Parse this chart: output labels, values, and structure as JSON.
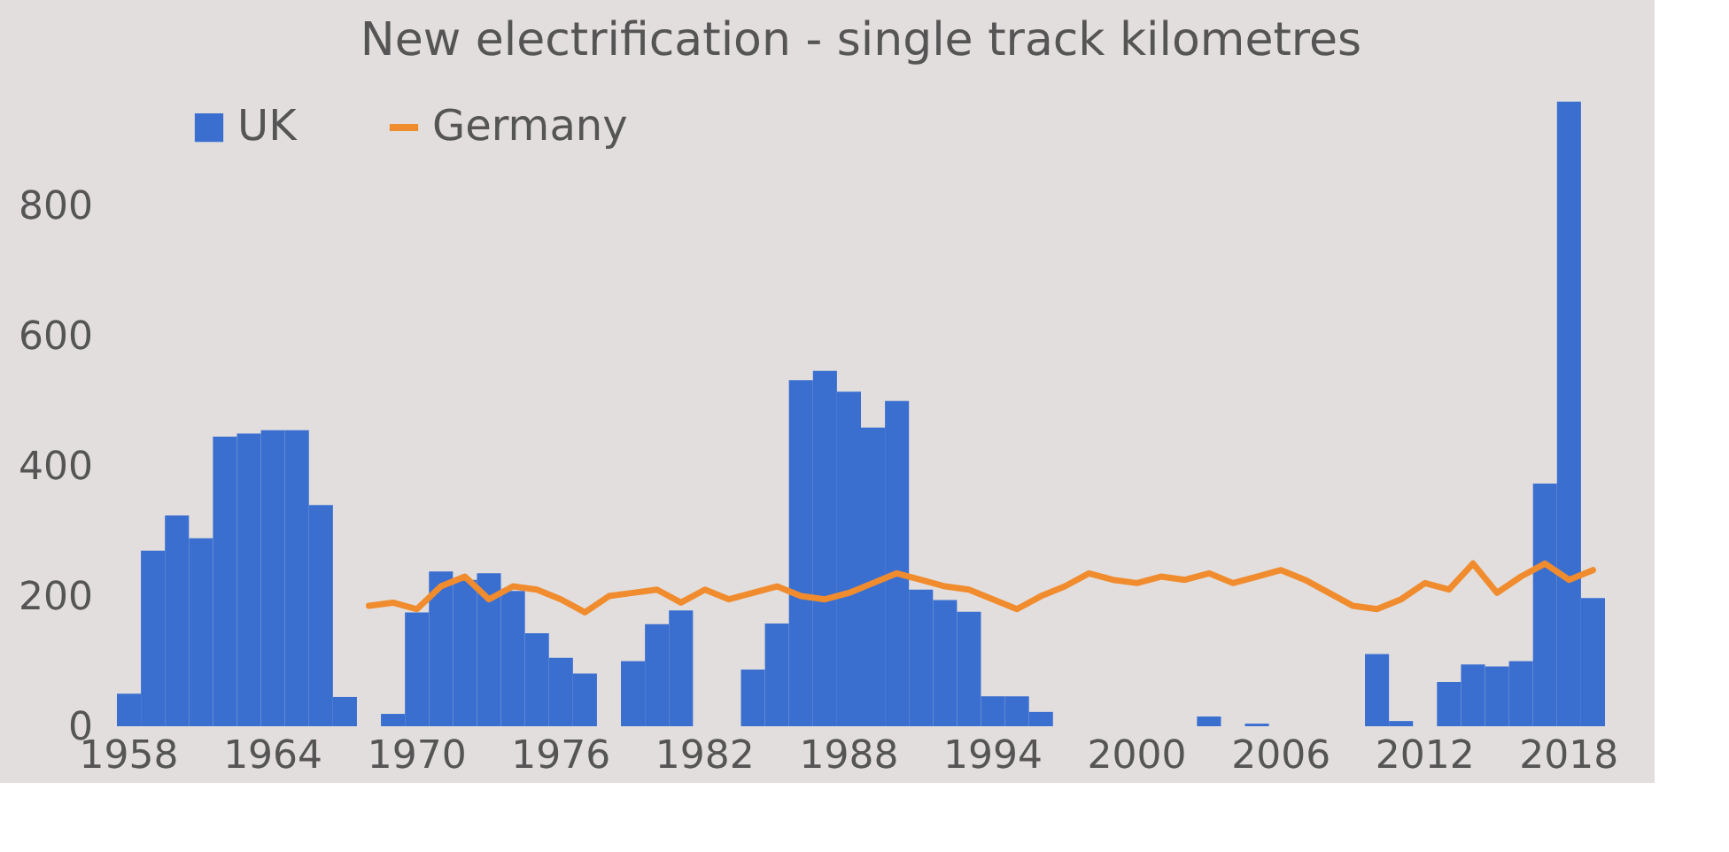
{
  "chart_data": {
    "type": "bar",
    "title": "New electrification - single track kilometres",
    "categories": [
      "1958",
      null,
      null,
      null,
      null,
      null,
      "1964",
      null,
      null,
      null,
      null,
      null,
      "1970",
      null,
      null,
      null,
      null,
      null,
      "1976",
      null,
      null,
      null,
      null,
      null,
      "1982",
      null,
      null,
      null,
      null,
      null,
      "1988",
      null,
      null,
      null,
      null,
      null,
      "1994",
      null,
      null,
      null,
      null,
      null,
      "2000",
      null,
      null,
      null,
      null,
      null,
      "2006",
      null,
      null,
      null,
      null,
      null,
      "2012",
      null,
      null,
      null,
      null,
      null,
      "2018",
      null
    ],
    "series": [
      {
        "name": "UK",
        "color": "#3a6fd0",
        "values": [
          50,
          270,
          324,
          289,
          445,
          450,
          455,
          455,
          340,
          45,
          0,
          19,
          175,
          238,
          225,
          235,
          208,
          143,
          105,
          81,
          0,
          100,
          157,
          178,
          0,
          0,
          87,
          158,
          532,
          546,
          514,
          459,
          500,
          210,
          194,
          176,
          46,
          46,
          22,
          0,
          0,
          0,
          0,
          0,
          0,
          15,
          0,
          4,
          0,
          0,
          0,
          0,
          111,
          8,
          0,
          68,
          95,
          92,
          100,
          373,
          960,
          197
        ]
      },
      {
        "name": "Germany",
        "type": "line",
        "color": "#f08c2e",
        "values": [
          null,
          null,
          null,
          null,
          null,
          null,
          null,
          null,
          null,
          null,
          185,
          190,
          180,
          215,
          230,
          195,
          215,
          210,
          195,
          175,
          200,
          205,
          210,
          190,
          210,
          195,
          205,
          215,
          200,
          195,
          205,
          220,
          235,
          225,
          215,
          210,
          195,
          180,
          200,
          215,
          235,
          225,
          220,
          230,
          225,
          235,
          220,
          230,
          240,
          225,
          205,
          185,
          180,
          195,
          220,
          210,
          250,
          205,
          230,
          250,
          225,
          240
        ]
      }
    ],
    "ylim": [
      0,
      980
    ],
    "yticks": [
      0,
      200,
      400,
      600,
      800
    ],
    "legend": "top left"
  }
}
